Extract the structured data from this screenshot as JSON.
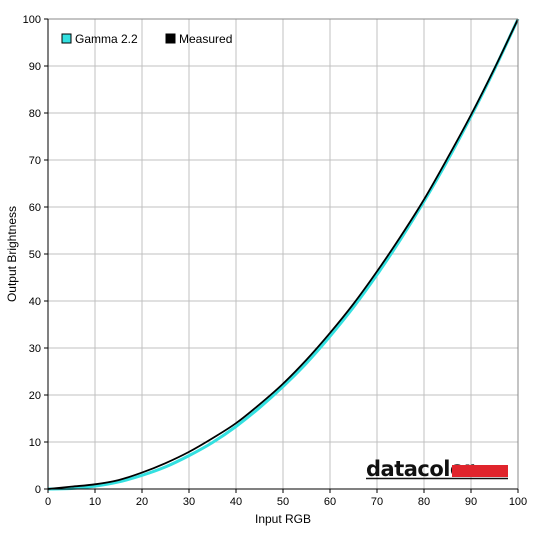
{
  "chart_data": {
    "type": "line",
    "title": "",
    "xlabel": "Input RGB",
    "ylabel": "Output Brightness",
    "xlim": [
      0,
      100
    ],
    "ylim": [
      0,
      100
    ],
    "x_ticks": [
      0,
      10,
      20,
      30,
      40,
      50,
      60,
      70,
      80,
      90,
      100
    ],
    "y_ticks": [
      0,
      10,
      20,
      30,
      40,
      50,
      60,
      70,
      80,
      90,
      100
    ],
    "grid": true,
    "legend_position": "top-left",
    "series": [
      {
        "name": "Gamma 2.2",
        "color": "#33e0e0",
        "x": [
          0,
          5,
          10,
          15,
          20,
          25,
          30,
          35,
          40,
          45,
          50,
          55,
          60,
          65,
          70,
          75,
          80,
          85,
          90,
          95,
          100
        ],
        "y": [
          0.0,
          0.1,
          0.6,
          1.5,
          2.9,
          4.7,
          7.1,
          9.9,
          13.3,
          17.3,
          21.8,
          26.8,
          32.5,
          38.7,
          45.6,
          53.1,
          61.2,
          69.9,
          79.3,
          89.3,
          100.0
        ]
      },
      {
        "name": "Measured",
        "color": "#000000",
        "x": [
          0,
          5,
          10,
          15,
          20,
          25,
          30,
          35,
          40,
          45,
          50,
          55,
          60,
          65,
          70,
          75,
          80,
          85,
          90,
          95,
          100
        ],
        "y": [
          0.0,
          0.5,
          1.0,
          1.9,
          3.5,
          5.5,
          7.9,
          10.8,
          14.0,
          18.0,
          22.4,
          27.5,
          33.2,
          39.4,
          46.3,
          53.7,
          61.6,
          70.4,
          79.6,
          89.5,
          100.0
        ]
      }
    ]
  },
  "branding": {
    "logo_text": "datacolor",
    "logo_bar_color": "#e0242c"
  },
  "colors": {
    "grid": "#c0c0c0",
    "axis": "#000000",
    "plot_border": "#888888"
  }
}
